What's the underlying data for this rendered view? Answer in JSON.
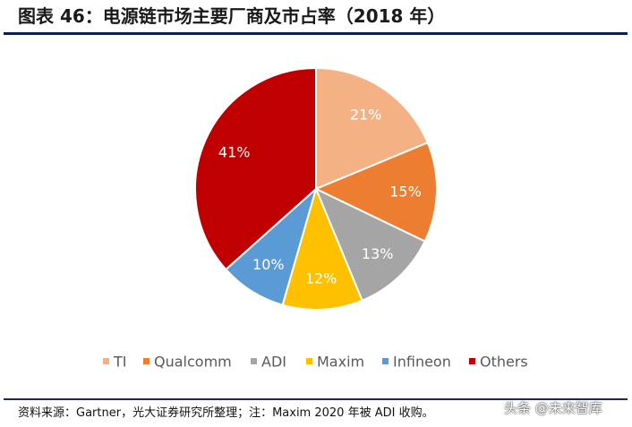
{
  "figure": {
    "title": "图表 46：电源链市场主要厂商及市占率（2018 年）",
    "source": "资料来源：Gartner，光大证券研究所整理；注：Maxim 2020 年被 ADI 收购。",
    "watermark": "头条 @未来智库"
  },
  "chart_data": {
    "type": "pie",
    "title": "",
    "labels": [
      "TI",
      "Qualcomm",
      "ADI",
      "Maxim",
      "Infineon",
      "Others"
    ],
    "values": [
      21,
      15,
      13,
      12,
      10,
      41
    ],
    "data_labels": [
      "21%",
      "15%",
      "13%",
      "12%",
      "10%",
      "41%"
    ],
    "colors": [
      "#f4b183",
      "#ed7d31",
      "#a5a5a5",
      "#ffc000",
      "#5b9bd5",
      "#c00000"
    ],
    "start": "12 o'clock",
    "direction": "clockwise",
    "legend": {
      "position": "bottom",
      "marker": "square"
    }
  }
}
